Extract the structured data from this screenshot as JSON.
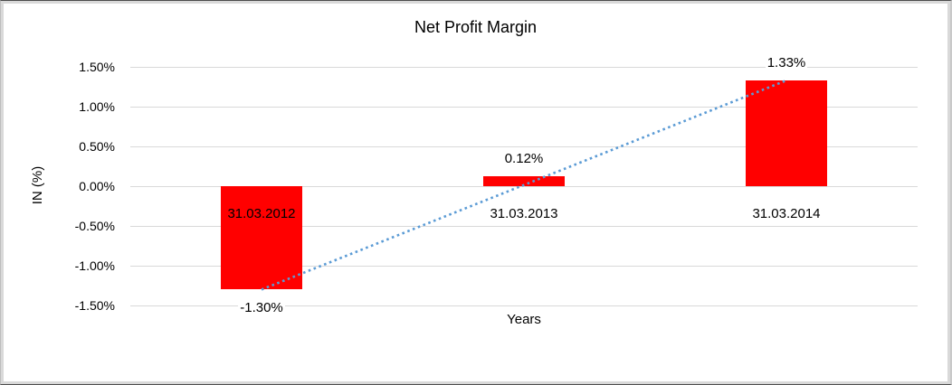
{
  "chart_data": {
    "type": "bar",
    "title": "Net Profit Margin",
    "xlabel": "Years",
    "ylabel": "IN (%)",
    "categories": [
      "31.03.2012",
      "31.03.2013",
      "31.03.2014"
    ],
    "values": [
      -1.3,
      0.12,
      1.33
    ],
    "data_labels": [
      "-1.30%",
      "0.12%",
      "1.33%"
    ],
    "ylim": [
      -1.5,
      1.5
    ],
    "ytick_step": 0.5,
    "yticks": [
      "1.50%",
      "1.00%",
      "0.50%",
      "0.00%",
      "-0.50%",
      "-1.00%",
      "-1.50%"
    ],
    "grid": true,
    "legend": "none",
    "bar_color": "#ff0000",
    "gridline_color": "#d9d9d9",
    "text_color": "#000000",
    "trendline": {
      "style": "dotted",
      "color": "#5b9bd5",
      "from": {
        "category_index": 0,
        "value": -1.3
      },
      "to": {
        "category_index": 2,
        "value": 1.33
      }
    }
  }
}
